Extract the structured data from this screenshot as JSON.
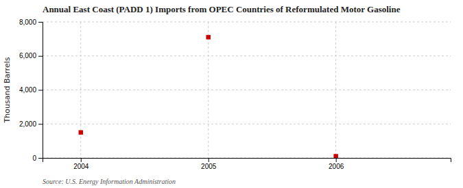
{
  "chart_data": {
    "type": "scatter",
    "title": "Annual East Coast (PADD 1) Imports from OPEC Countries of Reformulated Motor Gasoline",
    "ylabel": "Thousand Barrels",
    "source": "Source: U.S. Energy Information Administration",
    "x": [
      2004,
      2005,
      2006
    ],
    "values": [
      1500,
      7100,
      100
    ],
    "color": "#cc0000",
    "marker": "square",
    "xlim": [
      2003.7,
      2006.9
    ],
    "xticks": [
      2004,
      2005,
      2006
    ],
    "ylim": [
      0,
      8000
    ],
    "yticks": [
      0,
      {
        "value": 2000,
        "label": "2,000"
      },
      {
        "value": 4000,
        "label": "4,000"
      },
      {
        "value": 6000,
        "label": "6,000"
      },
      {
        "value": 8000,
        "label": "8,000"
      }
    ],
    "grid": true
  }
}
